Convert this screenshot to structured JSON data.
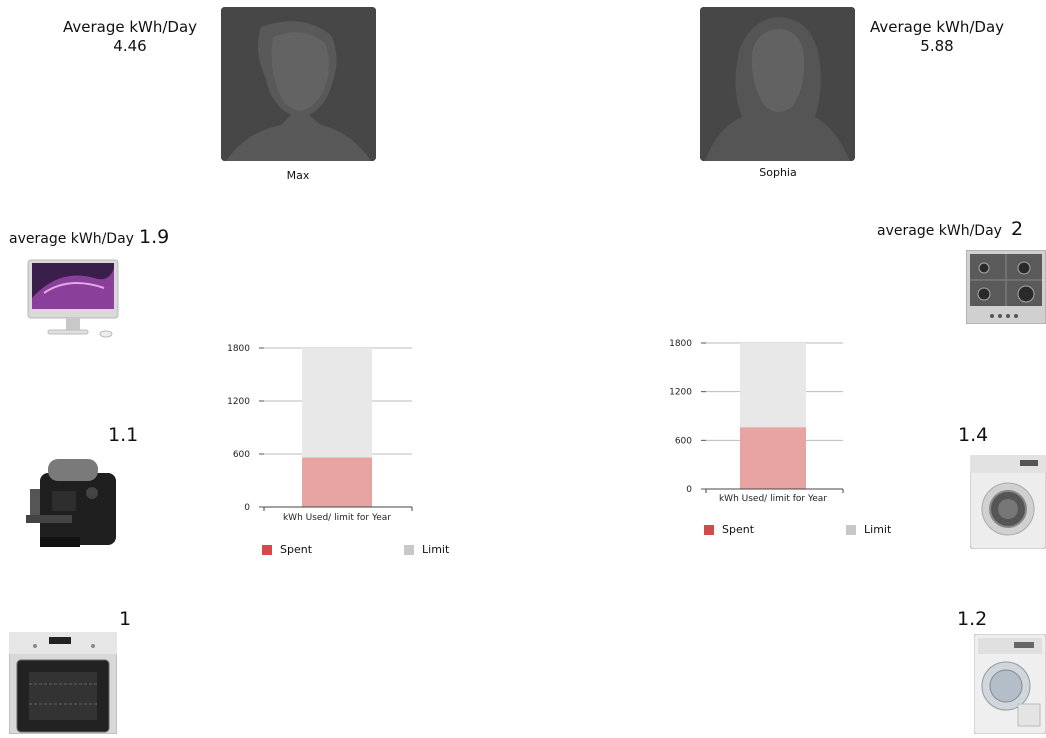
{
  "users": [
    {
      "name": "Max",
      "avg_label": "Average kWh/Day",
      "avg_value": "4.46"
    },
    {
      "name": "Sophia",
      "avg_label": "Average kWh/Day",
      "avg_value": "5.88"
    }
  ],
  "left_appliances": {
    "header_label": "average kWh/Day",
    "items": [
      {
        "icon": "imac-icon",
        "value": "1.9"
      },
      {
        "icon": "coffee-machine-icon",
        "value": "1.1"
      },
      {
        "icon": "oven-icon",
        "value": "1"
      }
    ]
  },
  "right_appliances": {
    "header_label": "average kWh/Day",
    "items": [
      {
        "icon": "gas-hob-icon",
        "value": "2"
      },
      {
        "icon": "washing-machine-icon",
        "value": "1.4"
      },
      {
        "icon": "dryer-icon",
        "value": "1.2"
      }
    ]
  },
  "chart_data": [
    {
      "type": "bar",
      "categories": [
        "kWh Used/ limit for Year"
      ],
      "series": [
        {
          "name": "Spent",
          "values": [
            560
          ]
        },
        {
          "name": "Limit",
          "values": [
            1800
          ]
        }
      ],
      "ylim": [
        0,
        1800
      ],
      "yticks": [
        "0",
        "600",
        "1200",
        "1800"
      ],
      "grid": true,
      "legend": "bottom",
      "colors": {
        "spent": "#e8a4a2",
        "limit": "#e8e8e8",
        "spent_legend": "#d34a4a",
        "limit_legend": "#c8c8c8"
      }
    },
    {
      "type": "bar",
      "categories": [
        "kWh Used/ limit for Year"
      ],
      "series": [
        {
          "name": "Spent",
          "values": [
            760
          ]
        },
        {
          "name": "Limit",
          "values": [
            1800
          ]
        }
      ],
      "ylim": [
        0,
        1800
      ],
      "yticks": [
        "0",
        "600",
        "1200",
        "1800"
      ],
      "grid": true,
      "legend": "bottom",
      "colors": {
        "spent": "#e8a4a2",
        "limit": "#e8e8e8",
        "spent_legend": "#d34a4a",
        "limit_legend": "#c8c8c8"
      }
    }
  ]
}
